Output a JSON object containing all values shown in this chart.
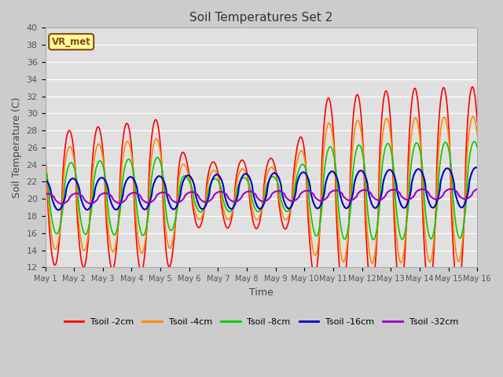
{
  "title": "Soil Temperatures Set 2",
  "xlabel": "Time",
  "ylabel": "Soil Temperature (C)",
  "ylim": [
    12,
    40
  ],
  "xlim": [
    0,
    15
  ],
  "fig_bg": "#cccccc",
  "plot_bg": "#e0e0e0",
  "annotation_text": "VR_met",
  "annotation_fg": "#8B4513",
  "annotation_bg": "#ffff99",
  "annotation_border": "#8B4513",
  "xtick_labels": [
    "May 1",
    "May 2",
    "May 3",
    "May 4",
    "May 5",
    "May 6",
    "May 7",
    "May 8",
    "May 9",
    "May 10",
    "May 11",
    "May 12",
    "May 13",
    "May 14",
    "May 15",
    "May 16"
  ],
  "series": [
    {
      "label": "Tsoil -2cm",
      "color": "#ff0000",
      "lw": 1.2
    },
    {
      "label": "Tsoil -4cm",
      "color": "#ff8800",
      "lw": 1.2
    },
    {
      "label": "Tsoil -8cm",
      "color": "#00cc00",
      "lw": 1.2
    },
    {
      "label": "Tsoil -16cm",
      "color": "#0000cc",
      "lw": 1.5
    },
    {
      "label": "Tsoil -32cm",
      "color": "#9900cc",
      "lw": 1.5
    }
  ]
}
